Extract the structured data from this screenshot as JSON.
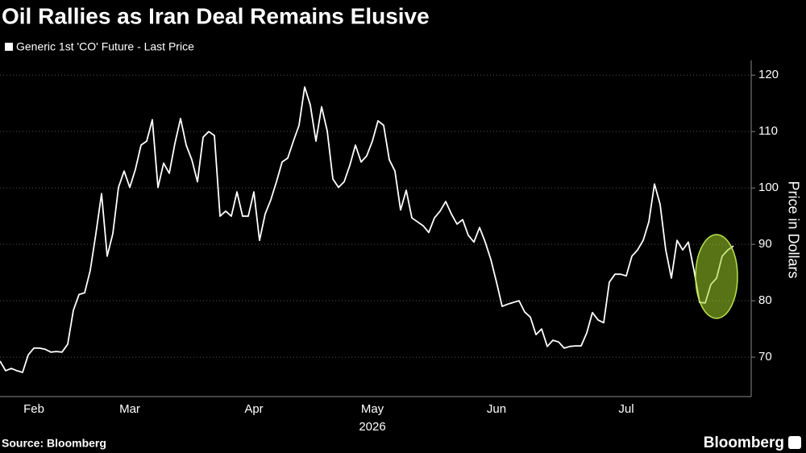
{
  "chart_data": {
    "type": "line",
    "title": "Oil Rallies as Iran Deal Remains Elusive",
    "xlabel": "2026",
    "ylabel": "Price in Dollars",
    "source": "Source: Bloomberg",
    "brand": "Bloomberg",
    "categories": [
      null,
      null,
      null,
      null,
      null,
      null,
      "Feb",
      null,
      null,
      null,
      null,
      null,
      null,
      null,
      null,
      null,
      null,
      null,
      null,
      null,
      null,
      null,
      null,
      "Mar",
      null,
      null,
      null,
      null,
      null,
      null,
      null,
      null,
      null,
      null,
      null,
      null,
      null,
      null,
      null,
      null,
      null,
      null,
      null,
      null,
      null,
      "Apr",
      null,
      null,
      null,
      null,
      null,
      null,
      null,
      null,
      null,
      null,
      null,
      null,
      null,
      null,
      null,
      null,
      null,
      null,
      null,
      null,
      "May",
      null,
      null,
      null,
      null,
      null,
      null,
      null,
      null,
      null,
      null,
      null,
      null,
      null,
      null,
      null,
      null,
      null,
      null,
      null,
      null,
      null,
      "Jun",
      null,
      null,
      null,
      null,
      null,
      null,
      null,
      null,
      null,
      null,
      null,
      null,
      null,
      null,
      null,
      null,
      null,
      null,
      null,
      null,
      null,
      null,
      "Jul",
      null,
      null,
      null,
      null,
      null,
      null,
      null,
      null,
      null,
      null,
      null,
      null,
      null,
      null,
      null,
      null,
      null,
      null,
      null
    ],
    "series": [
      {
        "name": "Generic 1st 'CO' Future - Last Price",
        "color": "#ffffff",
        "values": [
          69.3,
          67.6,
          68,
          67.6,
          67.3,
          70.4,
          71.6,
          71.6,
          71.4,
          70.9,
          71,
          70.9,
          72.3,
          78.3,
          81.1,
          81.4,
          85.4,
          91.9,
          99,
          87.9,
          91.9,
          100.1,
          103,
          100.1,
          103.3,
          107.6,
          108.3,
          112.1,
          100.1,
          104.4,
          102.6,
          107.9,
          112.3,
          107.6,
          105,
          101.1,
          109,
          110,
          109.3,
          95,
          95.9,
          95,
          99.3,
          95,
          95,
          99.3,
          90.7,
          95.4,
          97.9,
          101.1,
          104.6,
          105.3,
          108.3,
          111.1,
          117.9,
          114.7,
          108.3,
          114.4,
          110.1,
          101.6,
          100.1,
          101.1,
          104,
          107.6,
          104.6,
          105.7,
          108.3,
          111.9,
          111.1,
          105,
          103,
          96.1,
          99.6,
          94.7,
          94,
          93.3,
          92.1,
          94.7,
          95.9,
          97.6,
          95.4,
          93.6,
          94.4,
          91.6,
          90.4,
          93,
          90.4,
          87.3,
          83.3,
          79,
          79.4,
          79.7,
          80,
          78,
          77.1,
          74,
          75,
          71.9,
          73,
          72.7,
          71.6,
          71.9,
          72,
          72,
          74.3,
          77.9,
          76.6,
          76.1,
          83.3,
          84.7,
          84.7,
          84.4,
          87.9,
          89,
          90.7,
          94,
          100.7,
          97.1,
          89,
          84,
          90.7,
          89,
          90.4,
          85.4,
          79.7,
          79.6,
          82.9,
          84,
          87.9,
          89,
          89.7
        ]
      }
    ],
    "ylim": [
      63.3,
      122.6
    ],
    "yticks": [
      70,
      80,
      90,
      100,
      110,
      120
    ],
    "grid": true
  }
}
